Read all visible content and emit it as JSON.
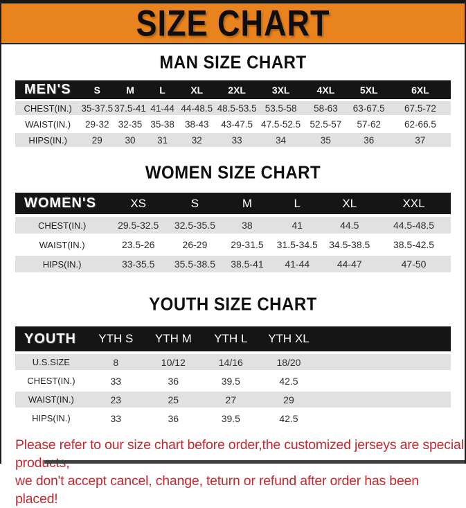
{
  "title": "SIZE CHART",
  "colors": {
    "banner_orange": "#E8831E",
    "table_header_black": "#151515",
    "row_stripe_gray": "#E1E1E1",
    "footer_red": "#BF2B30"
  },
  "sections": [
    {
      "heading": "MAN SIZE CHART",
      "table": {
        "header": [
          "MEN'S",
          "S",
          "M",
          "L",
          "XL",
          "2XL",
          "3XL",
          "4XL",
          "5XL",
          "6XL"
        ],
        "rows": [
          [
            "CHEST(IN.)",
            "35-37.5",
            "37.5-41",
            "41-44",
            "44-48.5",
            "48.5-53.5",
            "53.5-58",
            "58-63",
            "63-67.5",
            "67.5-72"
          ],
          [
            "WAIST(IN.)",
            "29-32",
            "32-35",
            "35-38",
            "38-43",
            "43-47.5",
            "47.5-52.5",
            "52.5-57",
            "57-62",
            "62-66.5"
          ],
          [
            "HIPS(IN.)",
            "29",
            "30",
            "31",
            "32",
            "33",
            "34",
            "35",
            "36",
            "37"
          ]
        ]
      }
    },
    {
      "heading": "WOMEN SIZE CHART",
      "table": {
        "header": [
          "WOMEN'S",
          "XS",
          "S",
          "M",
          "L",
          "XL",
          "XXL"
        ],
        "rows": [
          [
            "CHEST(IN.)",
            "29.5-32.5",
            "32.5-35.5",
            "38",
            "41",
            "44.5",
            "44.5-48.5"
          ],
          [
            "WAIST(IN.)",
            "23.5-26",
            "26-29",
            "29-31.5",
            "31.5-34.5",
            "34.5-38.5",
            "38.5-42.5"
          ],
          [
            "HIPS(IN.)",
            "33-35.5",
            "35.5-38.5",
            "38.5-41",
            "41-44",
            "44-47",
            "47-50"
          ]
        ]
      }
    },
    {
      "heading": "YOUTH SIZE CHART",
      "table": {
        "header": [
          "YOUTH",
          "YTH S",
          "YTH M",
          "YTH L",
          "YTH XL"
        ],
        "rows": [
          [
            "U.S.SIZE",
            "8",
            "10/12",
            "14/16",
            "18/20"
          ],
          [
            "CHEST(IN.)",
            "33",
            "36",
            "39.5",
            "42.5"
          ],
          [
            "WAIST(IN.)",
            "23",
            "25",
            "27",
            "29"
          ],
          [
            "HIPS(IN.)",
            "33",
            "36",
            "39.5",
            "42.5"
          ]
        ]
      }
    }
  ],
  "footer": {
    "line1": "Please refer to our size chart before order,the customized jerseys are special products,",
    "line2": "we don't accept cancel, change, teturn or refund after order has been placed!"
  }
}
